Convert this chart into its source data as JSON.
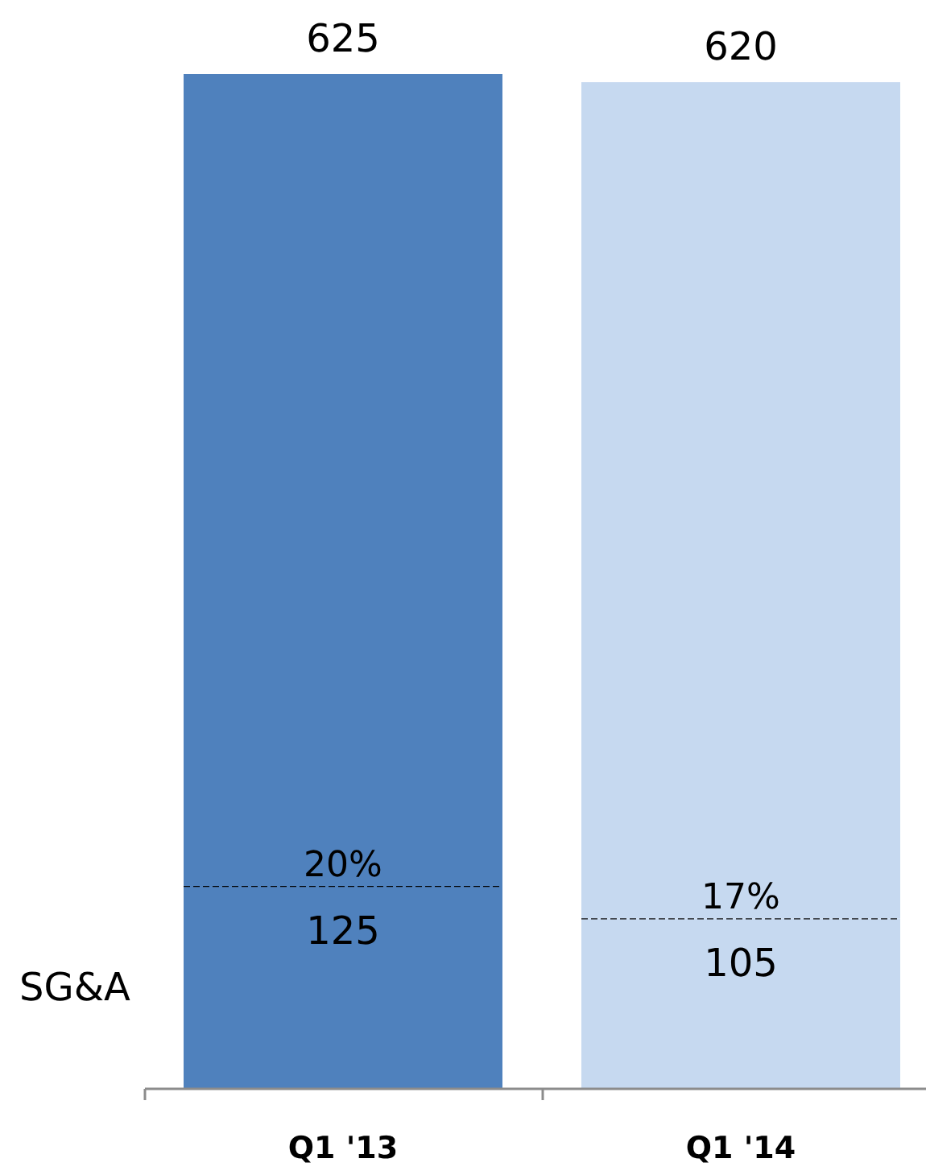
{
  "chart_data": {
    "type": "bar",
    "stacked": true,
    "categories": [
      "Q1 '13",
      "Q1 '14"
    ],
    "series": [
      {
        "name": "SG&A",
        "colors": [
          "#4f81bd",
          "#c6d9f0"
        ],
        "values": [
          125,
          105
        ],
        "value_labels": [
          "125",
          "105"
        ]
      },
      {
        "colors": [
          "#4f81bd",
          "#c6d9f0"
        ],
        "values": [
          500,
          515
        ]
      }
    ],
    "totals": [
      "625",
      "620"
    ],
    "annotations": [
      {
        "text": "20%",
        "x": "Q1 '13",
        "y": 125
      },
      {
        "text": "17%",
        "x": "Q1 '14",
        "y": 105
      }
    ]
  }
}
